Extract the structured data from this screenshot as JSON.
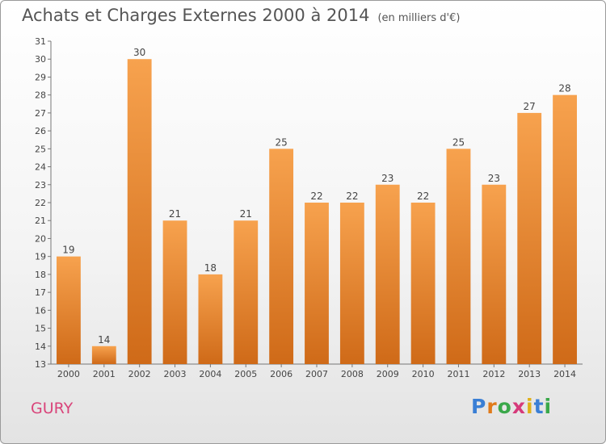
{
  "title": "Achats et Charges Externes 2000 à 2014",
  "subtitle": "(en milliers d'€)",
  "commune": "GURY",
  "logo": {
    "letters": [
      "P",
      "r",
      "o",
      "x",
      "i",
      "t",
      "i"
    ],
    "colors": [
      "#3a7fd5",
      "#e07b1a",
      "#3aa84a",
      "#d63a7a",
      "#e0b01a",
      "#3a7fd5",
      "#3aa84a"
    ]
  },
  "colors": {
    "bar_top": "#f7a24e",
    "bar_bottom": "#cf6a18",
    "commune": "#d9447a",
    "text": "#555555"
  },
  "chart_data": {
    "type": "bar",
    "title": "Achats et Charges Externes 2000 à 2014",
    "subtitle": "(en milliers d'€)",
    "categories": [
      "2000",
      "2001",
      "2002",
      "2003",
      "2004",
      "2005",
      "2006",
      "2007",
      "2008",
      "2009",
      "2010",
      "2011",
      "2012",
      "2013",
      "2014"
    ],
    "values": [
      19,
      14,
      30,
      21,
      18,
      21,
      25,
      22,
      22,
      23,
      22,
      25,
      23,
      27,
      28
    ],
    "ylim": [
      13,
      31
    ],
    "yticks": [
      13,
      14,
      15,
      16,
      17,
      18,
      19,
      20,
      21,
      22,
      23,
      24,
      25,
      26,
      27,
      28,
      29,
      30,
      31
    ],
    "grid": false,
    "data_labels": true
  }
}
